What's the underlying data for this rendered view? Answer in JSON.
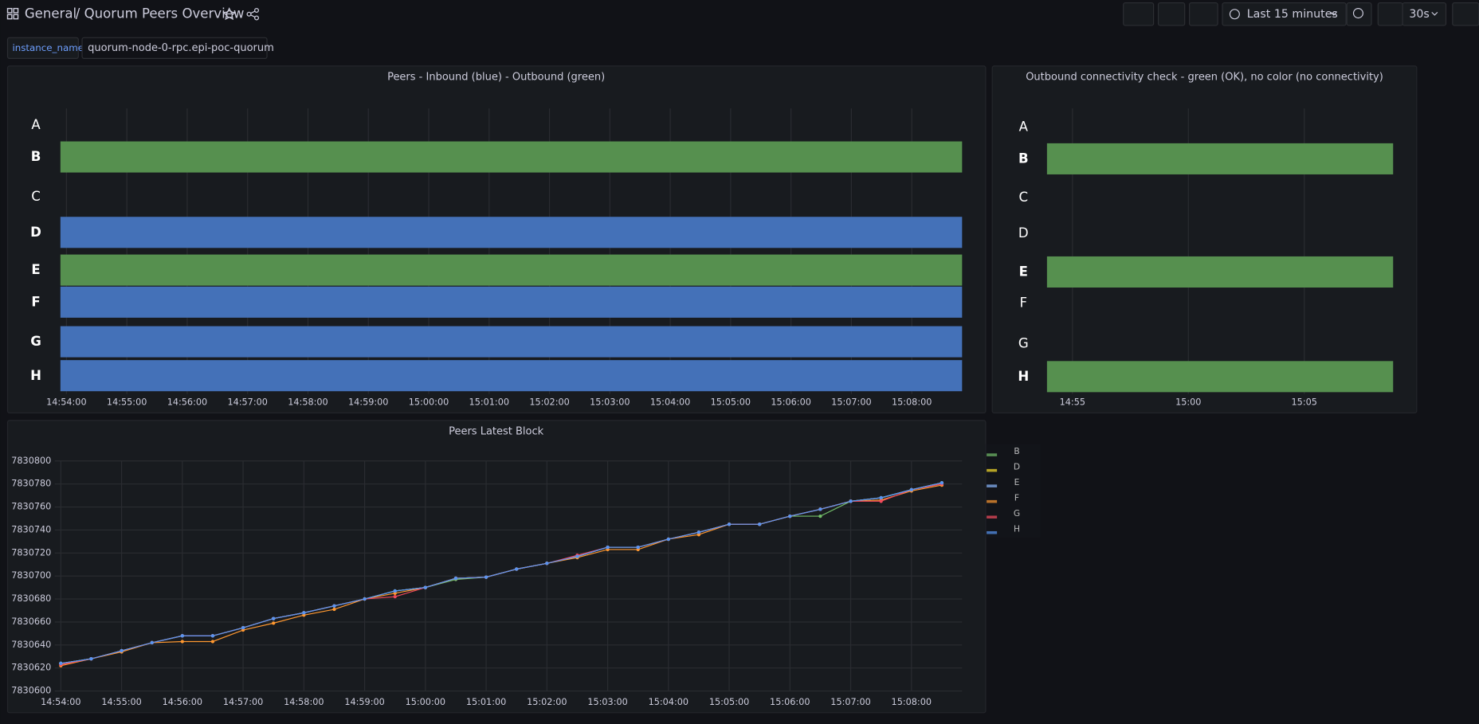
{
  "header": {
    "root": "General",
    "title": "/ Quorum Peers Overview",
    "time_range": "Last 15 minutes",
    "refresh": "30s"
  },
  "variables": [
    {
      "label": "instance_name",
      "value": "quorum-node-0-rpc.epi-poc-quorum"
    }
  ],
  "panels": [
    {
      "chart_data": {
        "type": "state-timeline",
        "title": "Peers - Inbound (blue) - Outbound (green)",
        "xlim": [
          "14:53:54",
          "15:08:50"
        ],
        "xticks": [
          "14:54:00",
          "14:55:00",
          "14:56:00",
          "14:57:00",
          "14:58:00",
          "14:59:00",
          "15:00:00",
          "15:01:00",
          "15:02:00",
          "15:03:00",
          "15:04:00",
          "15:05:00",
          "15:06:00",
          "15:07:00",
          "15:08:00"
        ],
        "rows": [
          {
            "label": "A"
          },
          {
            "label": "B",
            "color": "#56904f"
          },
          {
            "label": "C"
          },
          {
            "label": "D",
            "color": "#4471b8"
          },
          {
            "label": "E",
            "color": "#56904f"
          },
          {
            "label": "F",
            "color": "#4471b8"
          },
          {
            "label": "G",
            "color": "#4471b8"
          },
          {
            "label": "H",
            "color": "#4471b8"
          }
        ]
      }
    },
    {
      "chart_data": {
        "type": "state-timeline",
        "title": "Outbound connectivity check - green (OK), no color (no connectivity)",
        "xlim": [
          "14:53:54",
          "15:08:50"
        ],
        "xticks": [
          "14:55",
          "15:00",
          "15:05"
        ],
        "rows": [
          {
            "label": "A"
          },
          {
            "label": "B",
            "color": "#56904f"
          },
          {
            "label": "C"
          },
          {
            "label": "D"
          },
          {
            "label": "E",
            "color": "#56904f"
          },
          {
            "label": "F"
          },
          {
            "label": "G"
          },
          {
            "label": "H",
            "color": "#56904f"
          }
        ]
      }
    },
    {
      "chart_data": {
        "type": "line",
        "title": "Peers Latest Block",
        "xlim": [
          "14:53:54",
          "15:08:50"
        ],
        "xticks": [
          "14:54:00",
          "14:55:00",
          "14:56:00",
          "14:57:00",
          "14:58:00",
          "14:59:00",
          "15:00:00",
          "15:01:00",
          "15:02:00",
          "15:03:00",
          "15:04:00",
          "15:05:00",
          "15:06:00",
          "15:07:00",
          "15:08:00"
        ],
        "ylim": [
          7830600,
          7830800
        ],
        "yticks": [
          7830600,
          7830620,
          7830640,
          7830660,
          7830680,
          7830700,
          7830720,
          7830740,
          7830760,
          7830780,
          7830800
        ],
        "grid": true,
        "legend": "right",
        "x": [
          "14:54:00",
          "14:54:30",
          "14:55:00",
          "14:55:30",
          "14:56:00",
          "14:56:30",
          "14:57:00",
          "14:57:30",
          "14:58:00",
          "14:58:30",
          "14:59:00",
          "14:59:30",
          "15:00:00",
          "15:00:30",
          "15:01:00",
          "15:01:30",
          "15:02:00",
          "15:02:30",
          "15:03:00",
          "15:03:30",
          "15:04:00",
          "15:04:30",
          "15:05:00",
          "15:05:30",
          "15:06:00",
          "15:06:30",
          "15:07:00",
          "15:07:30",
          "15:08:00",
          "15:08:30"
        ],
        "series": [
          {
            "name": "B",
            "color": "#73bf69",
            "values": [
              7830624,
              7830628,
              7830635,
              7830642,
              7830648,
              7830648,
              7830655,
              7830663,
              7830668,
              7830674,
              7830680,
              7830687,
              7830690,
              7830697,
              7830699,
              7830706,
              7830711,
              7830717,
              7830725,
              7830725,
              7830732,
              7830738,
              7830745,
              7830745,
              7830752,
              7830752,
              7830765,
              7830768,
              7830775,
              7830781
            ]
          },
          {
            "name": "D",
            "color": "#fade2a",
            "values": [
              7830624,
              7830628,
              7830635,
              7830642,
              7830648,
              7830648,
              7830655,
              7830663,
              7830668,
              7830674,
              7830680,
              7830687,
              7830690,
              7830698,
              7830699,
              7830706,
              7830711,
              7830717,
              7830725,
              7830725,
              7830732,
              7830738,
              7830745,
              7830745,
              7830752,
              7830758,
              7830765,
              7830768,
              7830775,
              7830781
            ]
          },
          {
            "name": "E",
            "color": "#8ab8ff",
            "values": [
              7830624,
              7830628,
              7830635,
              7830642,
              7830648,
              7830648,
              7830655,
              7830663,
              7830668,
              7830674,
              7830680,
              7830687,
              7830690,
              7830698,
              7830699,
              7830706,
              7830711,
              7830717,
              7830725,
              7830725,
              7830732,
              7830738,
              7830745,
              7830745,
              7830752,
              7830758,
              7830765,
              7830768,
              7830775,
              7830781
            ]
          },
          {
            "name": "F",
            "color": "#ff9830",
            "values": [
              7830622,
              7830628,
              7830634,
              7830642,
              7830643,
              7830643,
              7830653,
              7830659,
              7830666,
              7830671,
              7830680,
              7830685,
              7830690,
              7830698,
              7830699,
              7830706,
              7830711,
              7830716,
              7830723,
              7830723,
              7830732,
              7830736,
              7830745,
              7830745,
              7830752,
              7830758,
              7830765,
              7830766,
              7830774,
              7830779
            ]
          },
          {
            "name": "G",
            "color": "#f2495c",
            "values": [
              7830623,
              7830628,
              7830635,
              7830642,
              7830648,
              7830648,
              7830655,
              7830663,
              7830668,
              7830674,
              7830680,
              7830682,
              7830690,
              7830698,
              7830699,
              7830706,
              7830711,
              7830718,
              7830725,
              7830725,
              7830732,
              7830738,
              7830745,
              7830745,
              7830752,
              7830758,
              7830765,
              7830765,
              7830775,
              7830780
            ]
          },
          {
            "name": "H",
            "color": "#5794f2",
            "values": [
              7830624,
              7830628,
              7830635,
              7830642,
              7830648,
              7830648,
              7830655,
              7830663,
              7830668,
              7830674,
              7830680,
              7830687,
              7830690,
              7830698,
              7830699,
              7830706,
              7830711,
              7830717,
              7830725,
              7830725,
              7830732,
              7830738,
              7830745,
              7830745,
              7830752,
              7830758,
              7830765,
              7830768,
              7830775,
              7830781
            ]
          }
        ]
      }
    }
  ]
}
